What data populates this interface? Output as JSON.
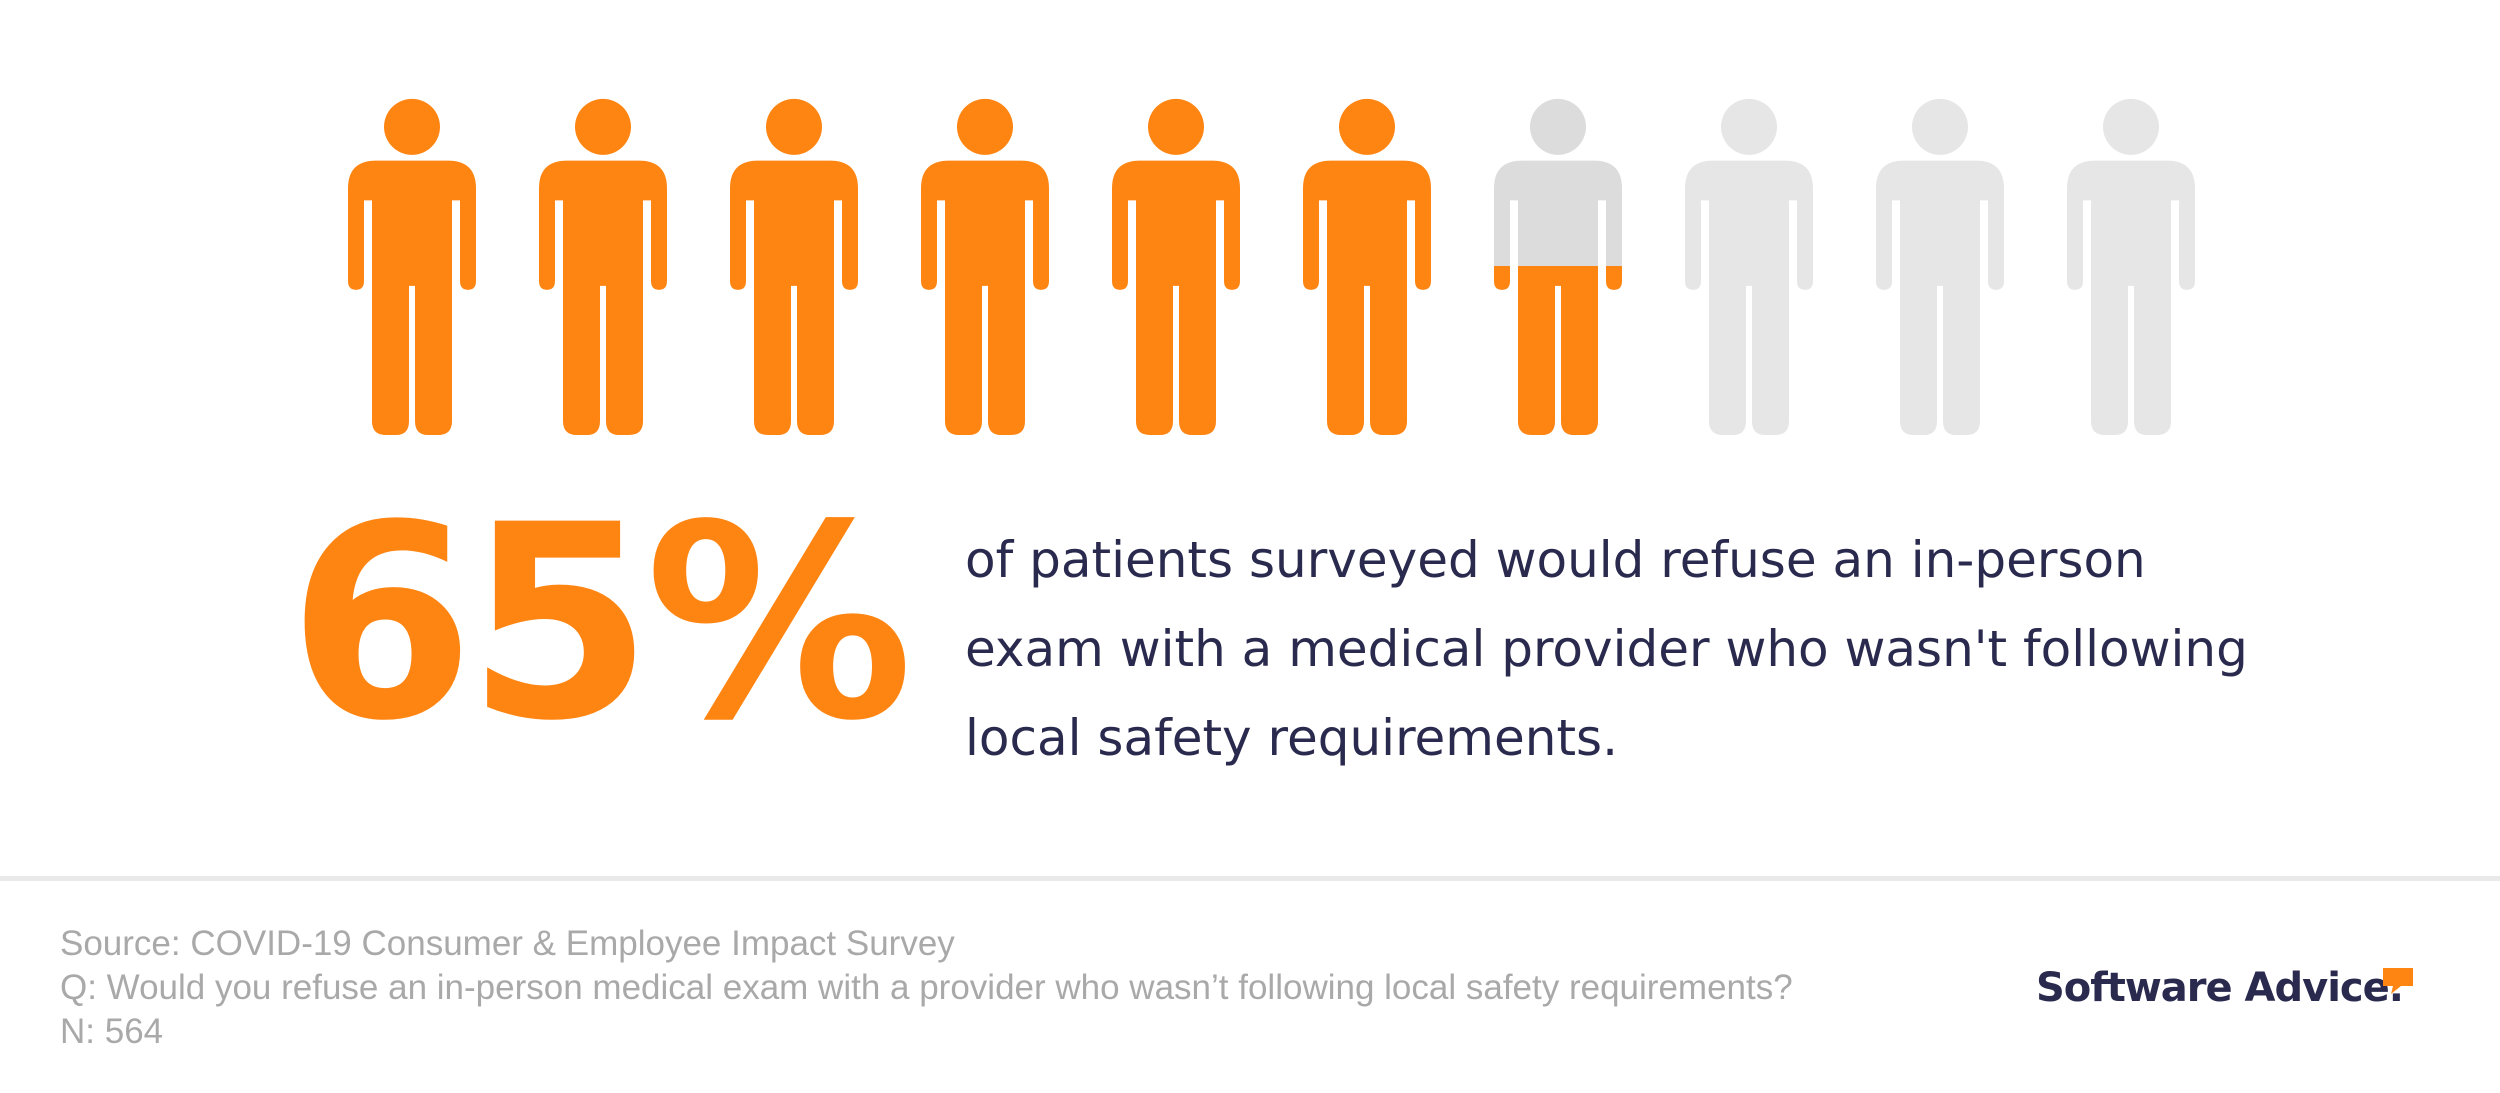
{
  "chart_data": {
    "type": "pictograph",
    "icon": "person-icon",
    "total_icons": 10,
    "value_percent": 65,
    "filled_color": "#ff8512",
    "empty_color": "#e6e6e6",
    "partial_empty_color": "#dcdcdc"
  },
  "headline": {
    "percent": "65%",
    "lines": [
      "of patients surveyed would refuse an in-person",
      "exam with a medical provider who wasn't following",
      "local safety requirements."
    ]
  },
  "footer": {
    "source": "Source: COVID-19 Consumer & Employee Impact Survey",
    "question": "Q: Would you refuse an in-person medical exam with a provider who wasn’t following local safety requirements?",
    "n": "N: 564"
  },
  "logo": {
    "text": "Software Advice.",
    "accent_color": "#ff8512"
  }
}
